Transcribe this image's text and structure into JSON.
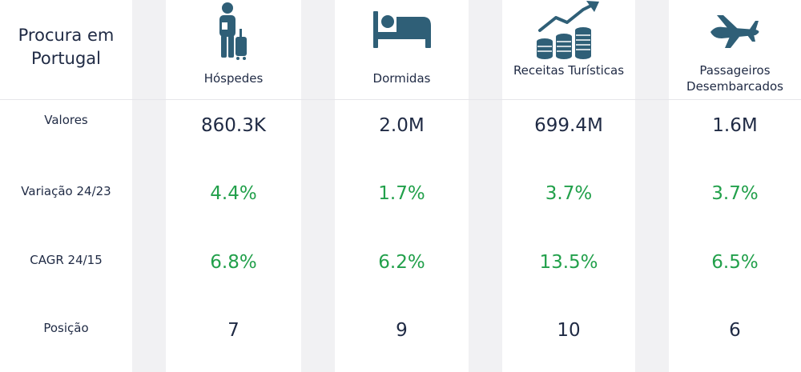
{
  "title": "Procura em Portugal",
  "row_labels": {
    "valores": "Valores",
    "variacao": "Variação 24/23",
    "cagr": "CAGR 24/15",
    "posicao": "Posição"
  },
  "columns": [
    {
      "label": "Hóspedes",
      "icon": "traveler-with-luggage-icon",
      "valor": "860.3K",
      "variacao": "4.4%",
      "cagr": "6.8%",
      "posicao": "7"
    },
    {
      "label": "Dormidas",
      "icon": "bed-icon",
      "valor": "2.0M",
      "variacao": "1.7%",
      "cagr": "6.2%",
      "posicao": "9"
    },
    {
      "label": "Receitas Turísticas",
      "icon": "revenue-growth-coins-icon",
      "valor": "699.4M",
      "variacao": "3.7%",
      "cagr": "13.5%",
      "posicao": "10"
    },
    {
      "label": "Passageiros Desembarcados",
      "icon": "airplane-icon",
      "valor": "1.6M",
      "variacao": "3.7%",
      "cagr": "6.5%",
      "posicao": "6"
    }
  ],
  "colors": {
    "text": "#1f2a44",
    "positive": "#22a04b",
    "icon": "#2f5f77",
    "separator": "#f1f1f3"
  }
}
